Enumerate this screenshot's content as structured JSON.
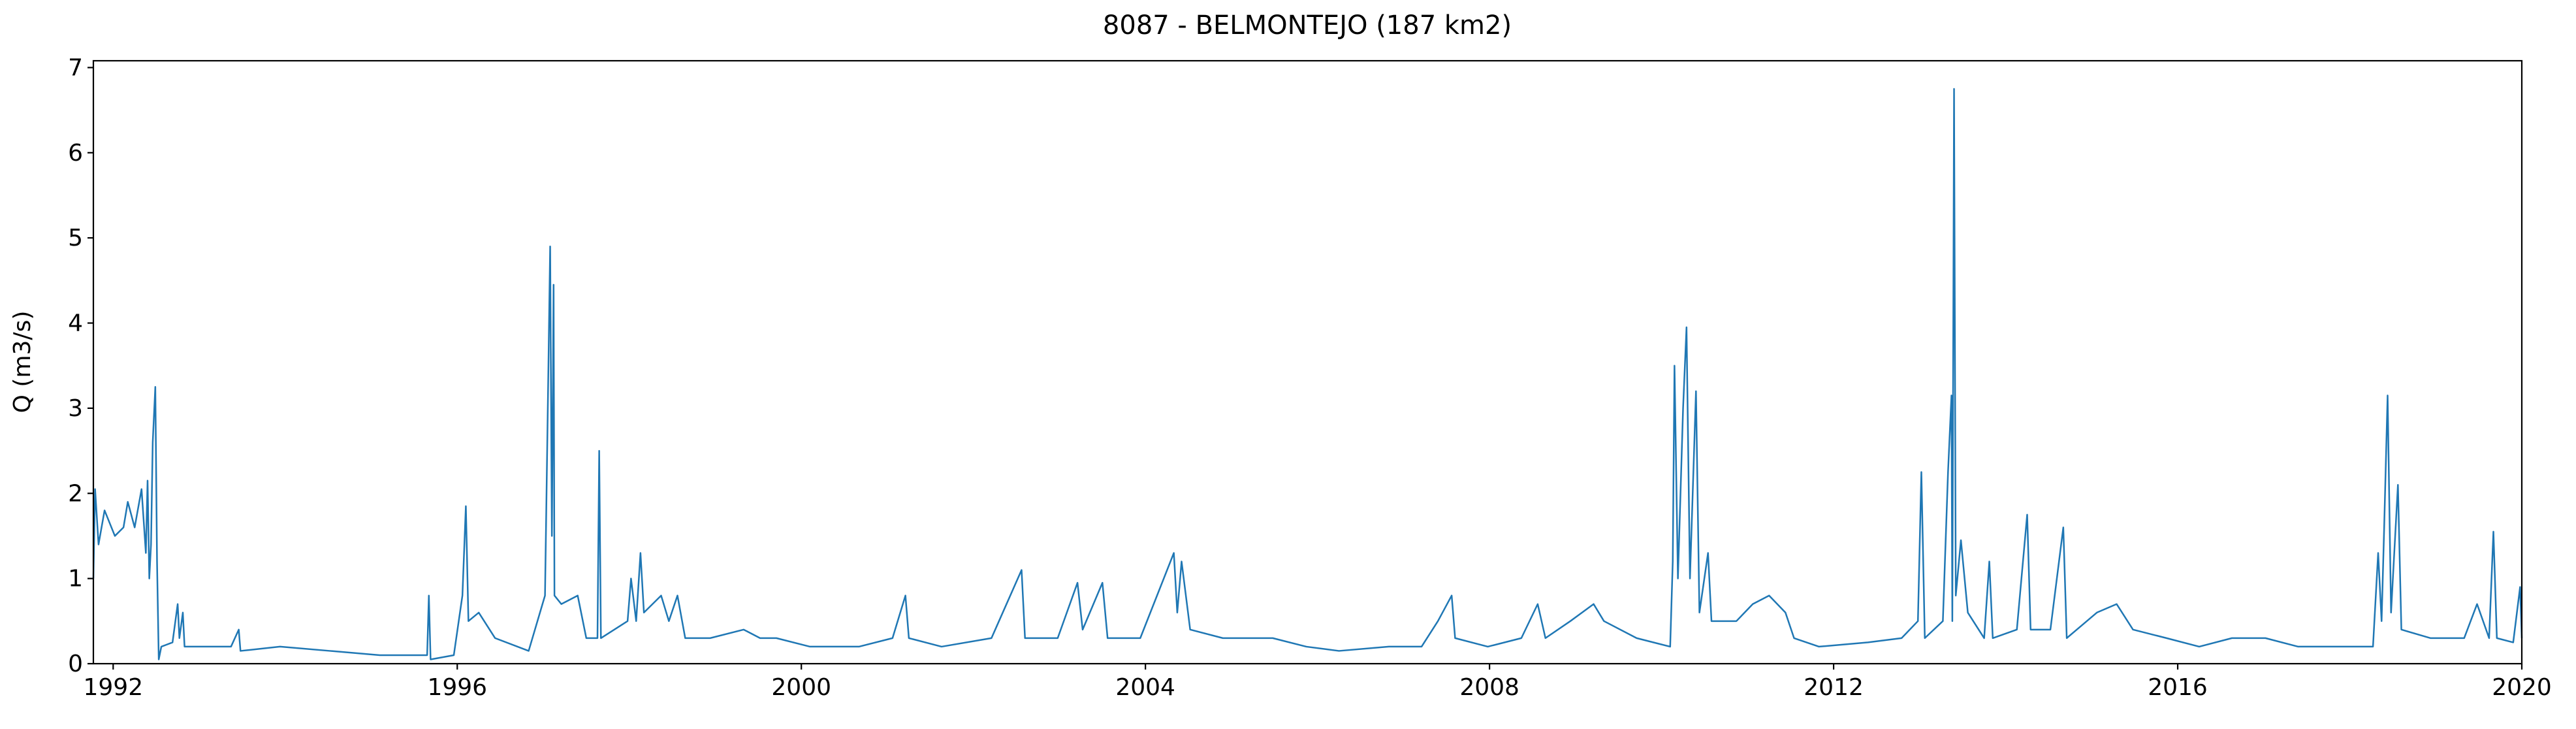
{
  "chart_data": {
    "type": "line",
    "title": "8087 - BELMONTEJO (187 km2)",
    "y_label": "Q (m3/s)",
    "xlim": [
      1991.77,
      2020.0
    ],
    "xticks": [
      1992,
      1996,
      2000,
      2004,
      2008,
      2012,
      2016,
      2020
    ],
    "ylim": [
      0,
      7.08
    ],
    "yticks": [
      0,
      1,
      2,
      3,
      4,
      5,
      6,
      7
    ],
    "grid": false,
    "x": [
      1991.77,
      1991.79,
      1991.83,
      1991.9,
      1992.02,
      1992.12,
      1992.17,
      1992.25,
      1992.33,
      1992.38,
      1992.4,
      1992.42,
      1992.44,
      1992.46,
      1992.49,
      1992.51,
      1992.53,
      1992.56,
      1992.69,
      1992.75,
      1992.77,
      1992.81,
      1992.83,
      1993.37,
      1993.46,
      1993.48,
      1993.94,
      1994.52,
      1995.1,
      1995.65,
      1995.67,
      1995.69,
      1995.96,
      1996.06,
      1996.1,
      1996.13,
      1996.25,
      1996.44,
      1996.83,
      1997.02,
      1997.06,
      1997.08,
      1997.1,
      1997.12,
      1997.13,
      1997.21,
      1997.4,
      1997.5,
      1997.63,
      1997.65,
      1997.67,
      1997.98,
      1998.02,
      1998.08,
      1998.13,
      1998.17,
      1998.37,
      1998.46,
      1998.56,
      1998.65,
      1998.94,
      1999.33,
      1999.52,
      1999.71,
      2000.1,
      2000.67,
      2001.06,
      2001.21,
      2001.25,
      2001.63,
      2002.21,
      2002.56,
      2002.6,
      2002.98,
      2003.21,
      2003.27,
      2003.5,
      2003.56,
      2003.94,
      2004.33,
      2004.37,
      2004.42,
      2004.52,
      2004.9,
      2005.48,
      2005.87,
      2006.25,
      2006.83,
      2007.21,
      2007.4,
      2007.56,
      2007.6,
      2007.98,
      2008.37,
      2008.56,
      2008.65,
      2008.94,
      2009.21,
      2009.33,
      2009.71,
      2010.1,
      2010.13,
      2010.15,
      2010.19,
      2010.25,
      2010.29,
      2010.33,
      2010.4,
      2010.44,
      2010.54,
      2010.58,
      2010.87,
      2011.06,
      2011.25,
      2011.44,
      2011.54,
      2011.83,
      2012.4,
      2012.79,
      2012.98,
      2013.02,
      2013.06,
      2013.27,
      2013.33,
      2013.37,
      2013.38,
      2013.4,
      2013.42,
      2013.48,
      2013.56,
      2013.75,
      2013.81,
      2013.85,
      2014.13,
      2014.25,
      2014.29,
      2014.52,
      2014.67,
      2014.71,
      2015.06,
      2015.29,
      2015.48,
      2015.87,
      2016.25,
      2016.63,
      2017.02,
      2017.4,
      2017.98,
      2018.27,
      2018.33,
      2018.37,
      2018.4,
      2018.44,
      2018.48,
      2018.56,
      2018.6,
      2018.94,
      2019.33,
      2019.48,
      2019.62,
      2019.67,
      2019.71,
      2019.9,
      2019.98,
      2020.0
    ],
    "series": [
      {
        "name": "Q",
        "color": "#1f77b4",
        "values": [
          1.0,
          2.05,
          1.4,
          1.8,
          1.5,
          1.6,
          1.9,
          1.6,
          2.05,
          1.3,
          2.15,
          1.0,
          1.4,
          2.6,
          3.25,
          1.2,
          0.05,
          0.2,
          0.25,
          0.7,
          0.3,
          0.6,
          0.2,
          0.2,
          0.4,
          0.15,
          0.2,
          0.15,
          0.1,
          0.1,
          0.8,
          0.05,
          0.1,
          0.8,
          1.85,
          0.5,
          0.6,
          0.3,
          0.15,
          0.8,
          3.5,
          4.9,
          1.5,
          4.45,
          0.8,
          0.7,
          0.8,
          0.3,
          0.3,
          2.5,
          0.3,
          0.5,
          1.0,
          0.5,
          1.3,
          0.6,
          0.8,
          0.5,
          0.8,
          0.3,
          0.3,
          0.4,
          0.3,
          0.3,
          0.2,
          0.2,
          0.3,
          0.8,
          0.3,
          0.2,
          0.3,
          1.1,
          0.3,
          0.3,
          0.95,
          0.4,
          0.95,
          0.3,
          0.3,
          1.3,
          0.6,
          1.2,
          0.4,
          0.3,
          0.3,
          0.2,
          0.15,
          0.2,
          0.2,
          0.5,
          0.8,
          0.3,
          0.2,
          0.3,
          0.7,
          0.3,
          0.5,
          0.7,
          0.5,
          0.3,
          0.2,
          1.2,
          3.5,
          1.0,
          3.0,
          3.95,
          1.0,
          3.2,
          0.6,
          1.3,
          0.5,
          0.5,
          0.7,
          0.8,
          0.6,
          0.3,
          0.2,
          0.25,
          0.3,
          0.5,
          2.25,
          0.3,
          0.5,
          2.25,
          3.15,
          0.5,
          6.75,
          0.8,
          1.45,
          0.6,
          0.3,
          1.2,
          0.3,
          0.4,
          1.75,
          0.4,
          0.4,
          1.6,
          0.3,
          0.6,
          0.7,
          0.4,
          0.3,
          0.2,
          0.3,
          0.3,
          0.2,
          0.2,
          0.2,
          1.3,
          0.5,
          1.6,
          3.15,
          0.6,
          2.1,
          0.4,
          0.3,
          0.3,
          0.7,
          0.3,
          1.55,
          0.3,
          0.25,
          0.9,
          0.3
        ]
      }
    ]
  }
}
